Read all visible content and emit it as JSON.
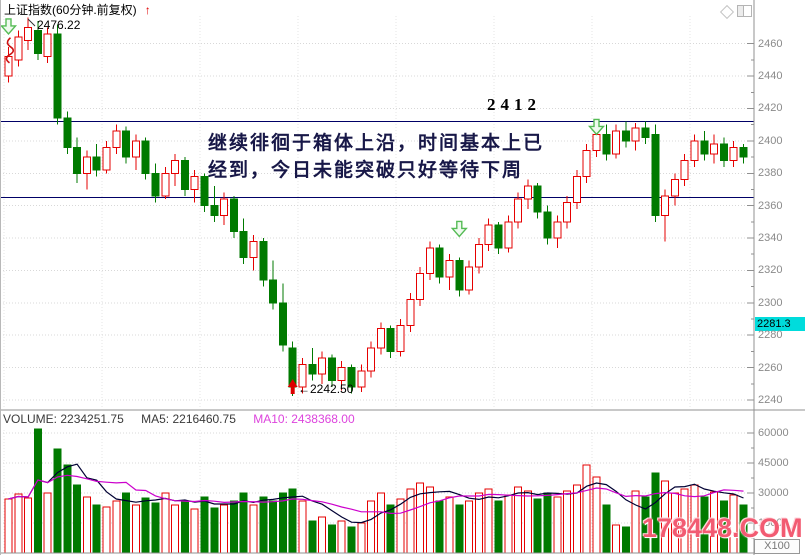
{
  "header": {
    "title": "上证指数(60分钟.前复权)",
    "trend_arrow": "↑"
  },
  "toolbar": {
    "diamond_icon": "diamond-outline",
    "window_icon": "split-window"
  },
  "main_chart": {
    "peak_label": "2476.22",
    "box_top_label": "2412",
    "annotation_line1": "继续徘徊于箱体上沿，时间基本上已",
    "annotation_line2": "经到，今日未能突破只好等待下周",
    "low_label": "←2242.50",
    "price_tag": "2281.3"
  },
  "volume_pane": {
    "vol_label": "VOLUME:",
    "vol_value": "2234251.75",
    "ma5_label": "MA5:",
    "ma5_value": "2216460.75",
    "ma10_label": "MA10:",
    "ma10_value": "2438368.00",
    "unit_label": "X100"
  },
  "watermark": {
    "text": "178448.COM"
  },
  "colors": {
    "up": "#e60000",
    "down": "#007a00",
    "box_line": "#000066",
    "ma5": "#000033",
    "ma10": "#cc00cc",
    "tag_bg": "#00dcdc",
    "grid": "#d8d8d8",
    "vgrid": "#e4e4e4",
    "axis": "#909090",
    "axis_text": "#8a8a8a"
  },
  "chart_data": {
    "type": "candlestick+volume",
    "title": "上证指数(60分钟.前复权)",
    "legend": [
      "VOLUME",
      "MA5",
      "MA10"
    ],
    "upper_box_line": 2412,
    "lower_box_line": 2365,
    "peak_price": 2476.22,
    "low_price": 2242.5,
    "last_price_tag": 2281.3,
    "price_axis": {
      "min": 2240,
      "max": 2460,
      "tick_step": 20,
      "ticks": [
        2460,
        2440,
        2420,
        2400,
        2380,
        2360,
        2340,
        2320,
        2300,
        2280,
        2260,
        2240
      ]
    },
    "volume_axis": {
      "min": 0,
      "max": 60000,
      "tick_step": 15000,
      "ticks": [
        60000,
        45000,
        30000,
        15000
      ],
      "unit": "X100"
    },
    "candles": [
      [
        2440,
        2458,
        2436,
        2452
      ],
      [
        2450,
        2468,
        2446,
        2464
      ],
      [
        2462,
        2476.22,
        2456,
        2470
      ],
      [
        2468,
        2474,
        2450,
        2454
      ],
      [
        2452,
        2470,
        2448,
        2466
      ],
      [
        2466,
        2472,
        2410,
        2414
      ],
      [
        2414,
        2418,
        2392,
        2396
      ],
      [
        2396,
        2402,
        2374,
        2380
      ],
      [
        2380,
        2394,
        2370,
        2390
      ],
      [
        2390,
        2398,
        2378,
        2382
      ],
      [
        2382,
        2400,
        2380,
        2396
      ],
      [
        2396,
        2410,
        2392,
        2406
      ],
      [
        2406,
        2409,
        2386,
        2390
      ],
      [
        2390,
        2404,
        2382,
        2400
      ],
      [
        2400,
        2402,
        2376,
        2380
      ],
      [
        2380,
        2386,
        2362,
        2366
      ],
      [
        2366,
        2384,
        2364,
        2380
      ],
      [
        2380,
        2392,
        2372,
        2388
      ],
      [
        2388,
        2390,
        2366,
        2370
      ],
      [
        2370,
        2382,
        2362,
        2378
      ],
      [
        2378,
        2380,
        2356,
        2360
      ],
      [
        2360,
        2372,
        2350,
        2354
      ],
      [
        2354,
        2368,
        2348,
        2364
      ],
      [
        2364,
        2366,
        2340,
        2344
      ],
      [
        2344,
        2352,
        2324,
        2328
      ],
      [
        2328,
        2342,
        2320,
        2338
      ],
      [
        2338,
        2340,
        2310,
        2314
      ],
      [
        2314,
        2326,
        2296,
        2300
      ],
      [
        2300,
        2312,
        2270,
        2274
      ],
      [
        2272,
        2276,
        2242.5,
        2248
      ],
      [
        2248,
        2266,
        2244,
        2262
      ],
      [
        2262,
        2272,
        2252,
        2256
      ],
      [
        2256,
        2270,
        2250,
        2266
      ],
      [
        2266,
        2268,
        2248,
        2252
      ],
      [
        2252,
        2264,
        2246,
        2260
      ],
      [
        2260,
        2262,
        2244,
        2248
      ],
      [
        2248,
        2262,
        2245,
        2258
      ],
      [
        2258,
        2276,
        2254,
        2272
      ],
      [
        2272,
        2288,
        2268,
        2284
      ],
      [
        2284,
        2286,
        2266,
        2270
      ],
      [
        2270,
        2290,
        2267,
        2286
      ],
      [
        2286,
        2306,
        2282,
        2302
      ],
      [
        2302,
        2322,
        2298,
        2318
      ],
      [
        2318,
        2338,
        2314,
        2334
      ],
      [
        2334,
        2336,
        2312,
        2316
      ],
      [
        2316,
        2330,
        2308,
        2326
      ],
      [
        2326,
        2328,
        2304,
        2308
      ],
      [
        2308,
        2326,
        2305,
        2322
      ],
      [
        2322,
        2340,
        2318,
        2336
      ],
      [
        2336,
        2352,
        2332,
        2348
      ],
      [
        2348,
        2350,
        2330,
        2334
      ],
      [
        2334,
        2354,
        2331,
        2350
      ],
      [
        2350,
        2368,
        2346,
        2364
      ],
      [
        2364,
        2376,
        2358,
        2372
      ],
      [
        2372,
        2374,
        2352,
        2356
      ],
      [
        2356,
        2360,
        2336,
        2340
      ],
      [
        2340,
        2354,
        2334,
        2350
      ],
      [
        2350,
        2366,
        2346,
        2362
      ],
      [
        2362,
        2382,
        2358,
        2378
      ],
      [
        2378,
        2398,
        2374,
        2394
      ],
      [
        2394,
        2408,
        2390,
        2404
      ],
      [
        2404,
        2410,
        2388,
        2392
      ],
      [
        2392,
        2410,
        2389,
        2406
      ],
      [
        2406,
        2412,
        2396,
        2400
      ],
      [
        2400,
        2411,
        2394,
        2408
      ],
      [
        2408,
        2412,
        2398,
        2402
      ],
      [
        2404,
        2410,
        2350,
        2354
      ],
      [
        2354,
        2370,
        2338,
        2366
      ],
      [
        2366,
        2380,
        2360,
        2376
      ],
      [
        2376,
        2392,
        2372,
        2388
      ],
      [
        2388,
        2404,
        2384,
        2400
      ],
      [
        2400,
        2406,
        2388,
        2392
      ],
      [
        2392,
        2404,
        2386,
        2398
      ],
      [
        2398,
        2402,
        2384,
        2388
      ],
      [
        2388,
        2400,
        2384,
        2396
      ],
      [
        2396,
        2398,
        2386,
        2390
      ]
    ],
    "volumes": [
      27000,
      29500,
      27500,
      62000,
      30000,
      52000,
      44000,
      34000,
      28000,
      24000,
      23000,
      26000,
      30000,
      24000,
      27500,
      25000,
      30000,
      24000,
      26000,
      22000,
      28000,
      22500,
      24000,
      26000,
      30000,
      24000,
      28000,
      26000,
      30000,
      32000,
      26000,
      16000,
      18000,
      14000,
      16000,
      13000,
      15000,
      26000,
      30000,
      24000,
      27000,
      32000,
      35000,
      33000,
      26000,
      28000,
      24000,
      26000,
      30000,
      32000,
      26000,
      29000,
      33000,
      31000,
      27000,
      30000,
      28000,
      31000,
      34000,
      44000,
      38000,
      24000,
      14000,
      13000,
      31000,
      28000,
      40000,
      36000,
      30000,
      32000,
      34000,
      28000,
      30500,
      26000,
      29000,
      24000
    ],
    "volume_readout": {
      "volume": 2234251.75,
      "ma5": 2216460.75,
      "ma10": 2438368.0
    },
    "markers": [
      {
        "type": "hollow-down-arrow",
        "index": 0,
        "price": 2466
      },
      {
        "type": "hollow-down-arrow",
        "index": 46,
        "price": 2341
      },
      {
        "type": "hollow-down-arrow",
        "index": 60,
        "price": 2404
      },
      {
        "type": "red-scribble",
        "index": 0,
        "price": 2455
      }
    ]
  }
}
